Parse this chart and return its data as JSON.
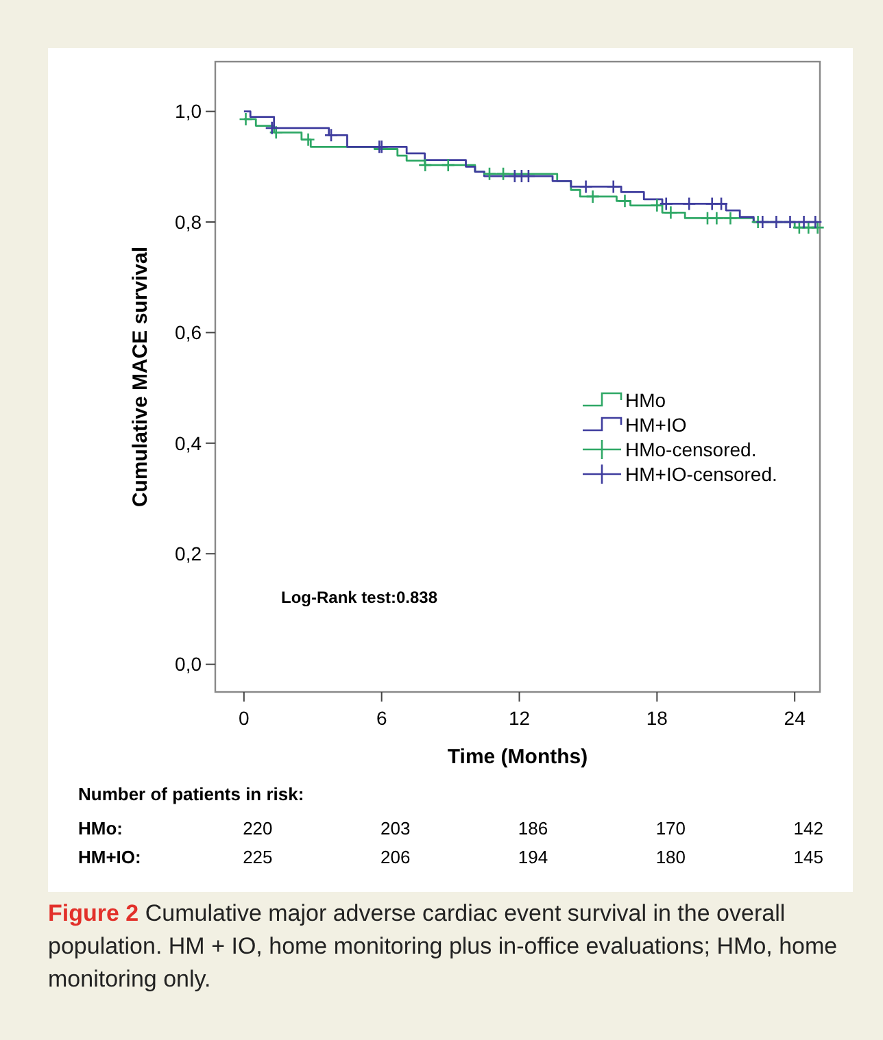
{
  "chart_data": {
    "type": "step",
    "xlabel": "Time (Months)",
    "ylabel": "Cumulative MACE survival",
    "xlim": [
      -1.25,
      25.1
    ],
    "ylim": [
      -0.05,
      1.09
    ],
    "xticks": [
      0,
      6,
      12,
      18,
      24
    ],
    "yticks": [
      {
        "value": 0,
        "label": "0,0"
      },
      {
        "value": 0.2,
        "label": "0,2"
      },
      {
        "value": 0.4,
        "label": "0,4"
      },
      {
        "value": 0.6,
        "label": "0,6"
      },
      {
        "value": 0.8,
        "label": "0,8"
      },
      {
        "value": 1,
        "label": "1,0"
      }
    ],
    "legend": "right",
    "grid": false,
    "series": [
      {
        "name": "HMo",
        "color": "#2fa866",
        "x": [
          0,
          0.52,
          1.31,
          2.51,
          2.91,
          5.69,
          6.69,
          7.09,
          7.88,
          10.07,
          10.47,
          13.65,
          14.25,
          14.65,
          16.24,
          16.84,
          18.23,
          19.22,
          22.21,
          24.0,
          25.0
        ],
        "values": [
          0.986,
          0.974,
          0.962,
          0.949,
          0.936,
          0.932,
          0.92,
          0.911,
          0.903,
          0.891,
          0.887,
          0.874,
          0.858,
          0.846,
          0.838,
          0.83,
          0.817,
          0.807,
          0.8,
          0.79,
          0.79
        ]
      },
      {
        "name": "HM+IO",
        "color": "#3f3d9e",
        "x": [
          0,
          0.28,
          1.31,
          3.7,
          4.5,
          7.09,
          7.88,
          9.67,
          10.07,
          10.47,
          13.45,
          14.25,
          16.44,
          17.43,
          18.23,
          21.01,
          21.61,
          22.21,
          25.0
        ],
        "values": [
          1.0,
          0.99,
          0.97,
          0.957,
          0.936,
          0.924,
          0.912,
          0.9,
          0.891,
          0.883,
          0.874,
          0.864,
          0.854,
          0.841,
          0.833,
          0.821,
          0.809,
          0.8,
          0.8
        ]
      },
      {
        "name": "HMo-censored.",
        "type": "scatter",
        "marker": "cross",
        "color": "#2fa866",
        "x": [
          0.08,
          1.4,
          2.8,
          7.9,
          8.9,
          10.7,
          11.3,
          15.2,
          16.6,
          18.0,
          18.6,
          20.2,
          20.6,
          21.2,
          22.4,
          24.2,
          24.6,
          25.0
        ],
        "values": [
          0.986,
          0.962,
          0.949,
          0.903,
          0.903,
          0.887,
          0.887,
          0.846,
          0.838,
          0.83,
          0.817,
          0.807,
          0.807,
          0.807,
          0.8,
          0.79,
          0.79,
          0.79
        ]
      },
      {
        "name": "HM+IO-censored.",
        "type": "scatter",
        "marker": "cross",
        "color": "#3f3d9e",
        "x": [
          1.22,
          3.8,
          5.9,
          6.0,
          11.8,
          12.1,
          12.4,
          14.9,
          16.1,
          18.4,
          19.4,
          20.4,
          20.8,
          22.6,
          23.2,
          23.8,
          24.4,
          24.9
        ],
        "values": [
          0.97,
          0.957,
          0.936,
          0.936,
          0.883,
          0.883,
          0.883,
          0.864,
          0.864,
          0.833,
          0.833,
          0.833,
          0.833,
          0.8,
          0.8,
          0.8,
          0.8,
          0.8
        ]
      }
    ],
    "annotations": [
      "Log-Rank test:0.838",
      "Number of patients in risk:",
      "HMo:",
      "220",
      "203",
      "186",
      "170",
      "142",
      "HM+IO:",
      "225",
      "206",
      "194",
      "180",
      "145",
      "Figure 2",
      "Cumulative major adverse cardiac event survival in the overall population. HM + IO, home monitoring plus in-office evaluations; HMo, home monitoring only."
    ]
  }
}
